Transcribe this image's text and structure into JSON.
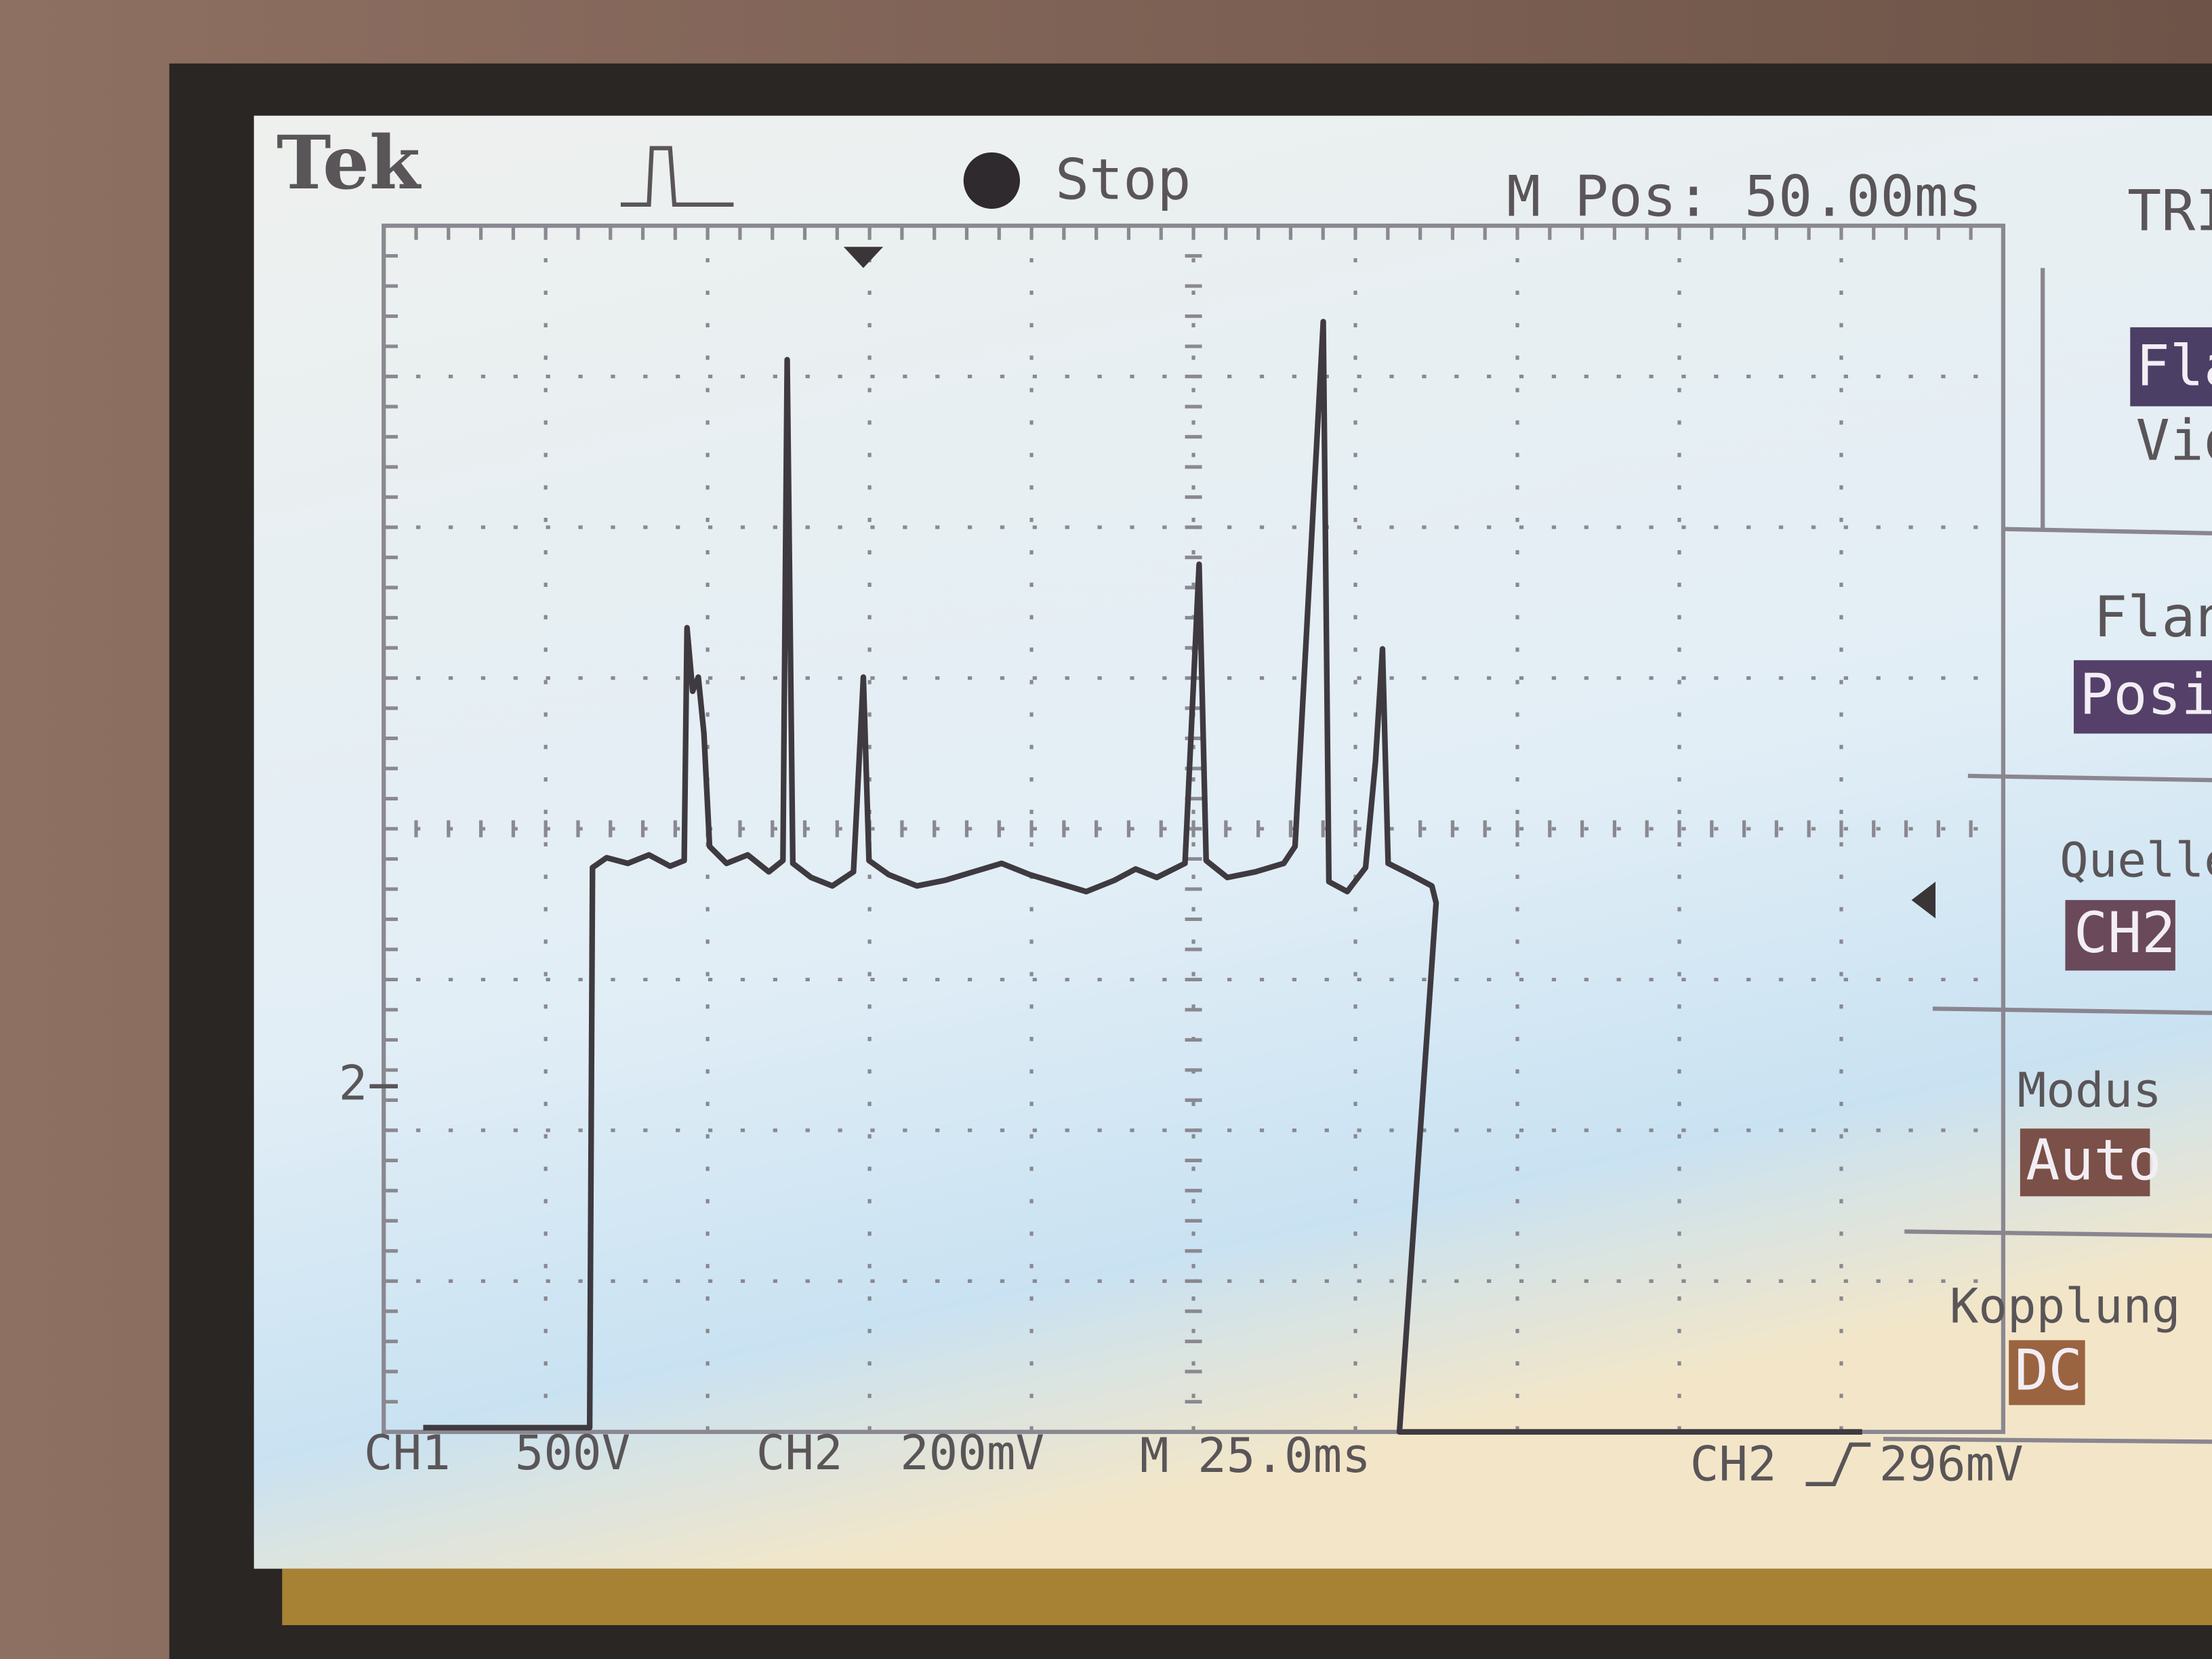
{
  "header": {
    "brand": "Tek",
    "status": "Stop",
    "position": "M Pos: 50.00ms",
    "menu_title": "TRI"
  },
  "menu": [
    {
      "label": "Fla",
      "value": "Vid"
    },
    {
      "label": "Flank",
      "value": "Positi"
    },
    {
      "label": "Quelle",
      "value": "CH2"
    },
    {
      "label": "Modus",
      "value": "Auto"
    },
    {
      "label": "Kopplung",
      "value": "DC"
    }
  ],
  "marker": "2",
  "footer": {
    "ch1": {
      "name": "CH1",
      "scale": "500V"
    },
    "ch2": {
      "name": "CH2",
      "scale": "200mV"
    },
    "time": "M 25.0ms",
    "trigger": {
      "source": "CH2",
      "level": "296mV"
    }
  }
}
